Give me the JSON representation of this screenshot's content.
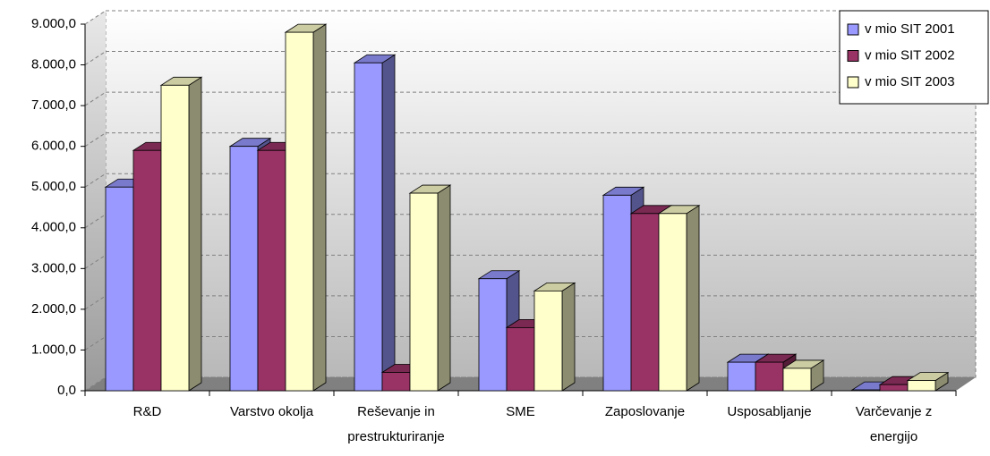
{
  "chart_data": {
    "type": "bar3d",
    "categories": [
      "R&D",
      "Varstvo okolja",
      "Reševanje in prestrukturiranje",
      "SME",
      "Zaposlovanje",
      "Usposabljanje",
      "Varčevanje z energijo"
    ],
    "series": [
      {
        "name": "v mio SIT 2001",
        "color": "#9999ff",
        "values": [
          5000,
          6000,
          8050,
          2750,
          4800,
          700,
          20
        ]
      },
      {
        "name": "v mio SIT 2002",
        "color": "#993366",
        "values": [
          5900,
          5900,
          450,
          1550,
          4350,
          700,
          150
        ]
      },
      {
        "name": "v mio SIT 2003",
        "color": "#ffffcc",
        "values": [
          7500,
          8800,
          4850,
          2450,
          4350,
          550,
          250
        ]
      }
    ],
    "ylim": [
      0,
      9000
    ],
    "yticks": [
      {
        "value": 0,
        "label": "0,0"
      },
      {
        "value": 1000,
        "label": "1.000,0"
      },
      {
        "value": 2000,
        "label": "2.000,0"
      },
      {
        "value": 3000,
        "label": "3.000,0"
      },
      {
        "value": 4000,
        "label": "4.000,0"
      },
      {
        "value": 5000,
        "label": "5.000,0"
      },
      {
        "value": 6000,
        "label": "6.000,0"
      },
      {
        "value": 7000,
        "label": "7.000,0"
      },
      {
        "value": 8000,
        "label": "8.000,0"
      },
      {
        "value": 9000,
        "label": "9.000,0"
      }
    ],
    "grid": true,
    "legend": "top-right"
  }
}
